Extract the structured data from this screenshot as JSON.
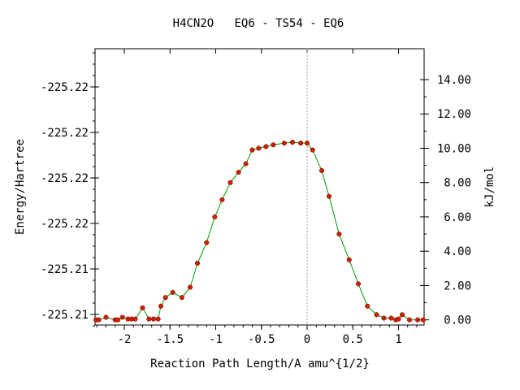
{
  "chart_data": {
    "type": "line",
    "title": "H4CN2O   EQ6 - TS54 - EQ6",
    "xlabel": "Reaction Path Length/A amu^{1/2}",
    "ylabel_left": "Energy/Hartree",
    "ylabel_right": "kJ/mol",
    "xlim": [
      -2.32,
      1.28
    ],
    "ylim_right": [
      -0.3,
      15.8
    ],
    "x_ticks": [
      -2,
      -1.5,
      -1,
      -0.5,
      0,
      0.5,
      1
    ],
    "x_tick_labels": [
      "-2",
      "-1.5",
      "-1",
      "-0.5",
      "0",
      "0.5",
      "1"
    ],
    "left_tick_labels": [
      "-225.21",
      "-225.21",
      "-225.22",
      "-225.22",
      "-225.22",
      "-225.22"
    ],
    "right_ticks": [
      0,
      2,
      4,
      6,
      8,
      10,
      12,
      14
    ],
    "right_tick_labels": [
      "0.00",
      "2.00",
      "4.00",
      "6.00",
      "8.00",
      "10.00",
      "12.00",
      "14.00"
    ],
    "ts_marker_x": 0,
    "series": [
      {
        "color": "#009900",
        "marker_color": "#cc2200",
        "x": [
          -2.31,
          -2.28,
          -2.2,
          -2.1,
          -2.07,
          -2.02,
          -1.96,
          -1.92,
          -1.88,
          -1.8,
          -1.73,
          -1.68,
          -1.63,
          -1.6,
          -1.55,
          -1.47,
          -1.37,
          -1.28,
          -1.2,
          -1.1,
          -1.01,
          -0.93,
          -0.84,
          -0.75,
          -0.67,
          -0.6,
          -0.53,
          -0.45,
          -0.37,
          -0.25,
          -0.16,
          -0.07,
          0.0,
          0.06,
          0.16,
          0.24,
          0.35,
          0.46,
          0.56,
          0.66,
          0.76,
          0.84,
          0.92,
          0.97,
          1.0,
          1.04,
          1.12,
          1.21,
          1.27
        ],
        "y": [
          0.0,
          0.0,
          0.15,
          0.0,
          0.0,
          0.15,
          0.05,
          0.05,
          0.05,
          0.7,
          0.05,
          0.05,
          0.05,
          0.8,
          1.3,
          1.6,
          1.3,
          1.9,
          3.3,
          4.5,
          6.0,
          7.0,
          8.0,
          8.6,
          9.1,
          9.9,
          10.0,
          10.1,
          10.2,
          10.3,
          10.35,
          10.3,
          10.3,
          9.9,
          8.7,
          7.2,
          5.0,
          3.5,
          2.1,
          0.8,
          0.3,
          0.1,
          0.1,
          0.0,
          0.05,
          0.3,
          0.0,
          0.0,
          0.0
        ]
      }
    ]
  }
}
